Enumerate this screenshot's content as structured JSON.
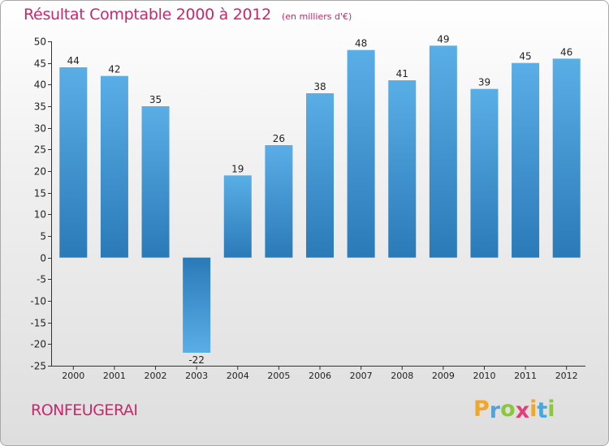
{
  "chart_data": {
    "type": "bar",
    "title": "Résultat Comptable 2000 à 2012",
    "subtitle": "(en milliers d'€)",
    "categories": [
      "2000",
      "2001",
      "2002",
      "2003",
      "2004",
      "2005",
      "2006",
      "2007",
      "2008",
      "2009",
      "2010",
      "2011",
      "2012"
    ],
    "values": [
      44,
      42,
      35,
      -22,
      19,
      26,
      38,
      48,
      41,
      49,
      39,
      45,
      46
    ],
    "y_ticks": [
      50,
      45,
      40,
      35,
      30,
      25,
      20,
      15,
      10,
      5,
      0,
      -5,
      -10,
      -15,
      -20,
      -25
    ],
    "ylim": [
      -25,
      50
    ],
    "xlabel": "",
    "ylabel": "",
    "grid": false,
    "bar_color_light": "#5aaee6",
    "bar_color_dark": "#2a7ab8"
  },
  "commune": "RONFEUGERAI",
  "brand": {
    "letters": [
      "P",
      "r",
      "o",
      "x",
      "i",
      "t",
      "i"
    ],
    "colors": [
      "#f0a62a",
      "#4aa6dd",
      "#8cc63f",
      "#e23f7b",
      "#f0a62a",
      "#4aa6dd",
      "#8cc63f"
    ]
  }
}
